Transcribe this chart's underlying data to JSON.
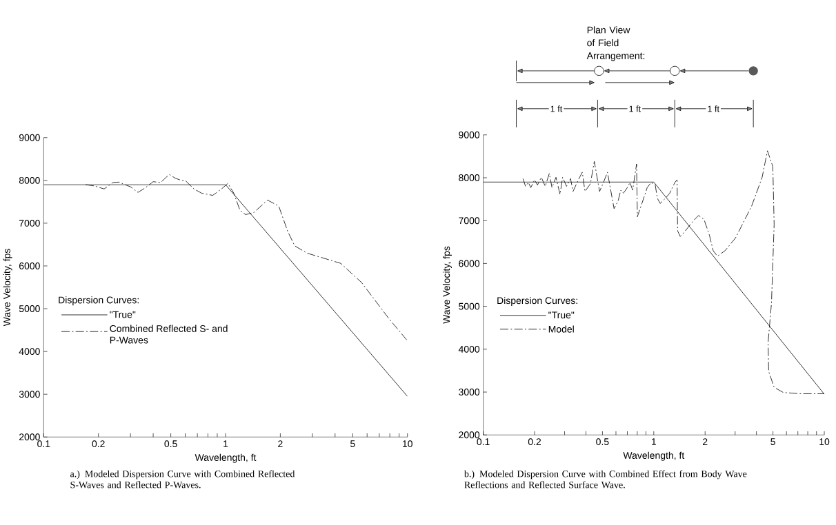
{
  "chart_data": [
    {
      "type": "line",
      "log": "x",
      "xlabel": "Wavelength, ft",
      "ylabel": "Wave Velocity, fps",
      "legend_title": "Dispersion Curves:",
      "legend": "left",
      "marker": "none",
      "xlim": [
        0.1,
        10
      ],
      "ylim": [
        2000,
        9000
      ],
      "xticks": [
        0.1,
        0.2,
        {
          "value": 0.3,
          "label": null
        },
        {
          "value": 0.4,
          "label": null
        },
        0.5,
        {
          "value": 0.6,
          "label": null
        },
        {
          "value": 0.7,
          "label": null
        },
        {
          "value": 0.8,
          "label": null
        },
        {
          "value": 0.9,
          "label": null
        },
        1,
        2,
        {
          "value": 3,
          "label": null
        },
        {
          "value": 4,
          "label": null
        },
        5,
        {
          "value": 6,
          "label": null
        },
        {
          "value": 7,
          "label": null
        },
        {
          "value": 8,
          "label": null
        },
        {
          "value": 9,
          "label": null
        },
        10
      ],
      "yticks": [
        2000,
        3000,
        4000,
        5000,
        6000,
        7000,
        8000,
        9000
      ],
      "annotations": [
        "a.) Modeled Dispersion Curve with Combined Reflected S-Waves and Reflected P-Waves."
      ],
      "series": [
        {
          "name": "\"True\"",
          "color": "#000000",
          "line_style": "solid",
          "x": [
            0.1,
            1,
            10
          ],
          "values": [
            7900,
            7900,
            2950
          ]
        },
        {
          "name": "Combined Reflected S- and P-Waves",
          "color": "#000000",
          "line_style": "dashed",
          "x": [
            0.17,
            0.19,
            0.215,
            0.24,
            0.26,
            0.28,
            0.3,
            0.33,
            0.36,
            0.4,
            0.44,
            0.49,
            0.53,
            0.57,
            0.6,
            0.67,
            0.74,
            0.85,
            0.95,
            1.03,
            1.11,
            1.2,
            1.29,
            1.43,
            1.7,
            1.96,
            2.2,
            2.4,
            2.8,
            4.3,
            5.6,
            7.9,
            10
          ],
          "values": [
            7900,
            7870,
            7800,
            7950,
            7960,
            7900,
            7850,
            7720,
            7820,
            7970,
            7950,
            8140,
            8050,
            8000,
            8000,
            7800,
            7700,
            7650,
            7800,
            7930,
            7700,
            7300,
            7200,
            7250,
            7540,
            7400,
            6800,
            6470,
            6300,
            6060,
            5610,
            4770,
            4250
          ]
        }
      ]
    },
    {
      "type": "line",
      "log": "x",
      "xlabel": "Wavelength, ft",
      "ylabel": "Wave Velocity, fps",
      "legend_title": "Dispersion Curves:",
      "legend": "left",
      "marker": "none",
      "xlim": [
        0.1,
        10
      ],
      "ylim": [
        2000,
        9000
      ],
      "xticks": [
        0.1,
        0.2,
        {
          "value": 0.3,
          "label": null
        },
        {
          "value": 0.4,
          "label": null
        },
        0.5,
        {
          "value": 0.6,
          "label": null
        },
        {
          "value": 0.7,
          "label": null
        },
        {
          "value": 0.8,
          "label": null
        },
        {
          "value": 0.9,
          "label": null
        },
        1,
        2,
        {
          "value": 3,
          "label": null
        },
        {
          "value": 4,
          "label": null
        },
        5,
        {
          "value": 6,
          "label": null
        },
        {
          "value": 7,
          "label": null
        },
        {
          "value": 8,
          "label": null
        },
        {
          "value": 9,
          "label": null
        },
        10
      ],
      "yticks": [
        2000,
        3000,
        4000,
        5000,
        6000,
        7000,
        8000,
        9000
      ],
      "annotations": [
        "b.) Modeled Dispersion Curve with Combined Effect from Body Wave Reflections and Reflected Surface Wave.",
        "Plan View of Field Arrangement:",
        "1 ft",
        "1 ft",
        "1 ft"
      ],
      "series": [
        {
          "name": "\"True\"",
          "color": "#000000",
          "line_style": "solid",
          "x": [
            0.1,
            1,
            10
          ],
          "values": [
            7900,
            7900,
            2950
          ]
        },
        {
          "name": "Model",
          "color": "#000000",
          "line_style": "dashed",
          "x": [
            0.171,
            0.177,
            0.184,
            0.19,
            0.2,
            0.208,
            0.219,
            0.231,
            0.244,
            0.253,
            0.267,
            0.282,
            0.292,
            0.308,
            0.325,
            0.336,
            0.361,
            0.381,
            0.395,
            0.425,
            0.448,
            0.481,
            0.507,
            0.535,
            0.585,
            0.618,
            0.64,
            0.663,
            0.7,
            0.725,
            0.752,
            0.793,
            0.801,
            0.852,
            0.915,
            0.965,
            1.02,
            1.05,
            1.09,
            1.17,
            1.24,
            1.33,
            1.37,
            1.38,
            1.43,
            1.53,
            1.71,
            1.83,
            1.97,
            2.12,
            2.23,
            2.36,
            2.62,
            3.02,
            3.75,
            4.32,
            4.64,
            4.99,
            5.08,
            4.9,
            4.68,
            4.72,
            5.08,
            5.75,
            7.38,
            10
          ],
          "values": [
            7980,
            7800,
            7890,
            7770,
            7950,
            7830,
            8010,
            7800,
            8100,
            7770,
            8010,
            7610,
            8010,
            7800,
            7980,
            7680,
            7950,
            8130,
            7680,
            7860,
            8380,
            7680,
            7890,
            8130,
            7280,
            7460,
            7710,
            7640,
            7770,
            7890,
            7710,
            8320,
            7090,
            7400,
            7770,
            7890,
            7830,
            7520,
            7400,
            7520,
            7640,
            7890,
            7950,
            6760,
            6630,
            6760,
            7000,
            7120,
            7030,
            6660,
            6300,
            6170,
            6300,
            6600,
            7340,
            8010,
            8630,
            8260,
            6910,
            5070,
            4150,
            3480,
            3110,
            2990,
            2960,
            2960
          ]
        }
      ]
    }
  ]
}
